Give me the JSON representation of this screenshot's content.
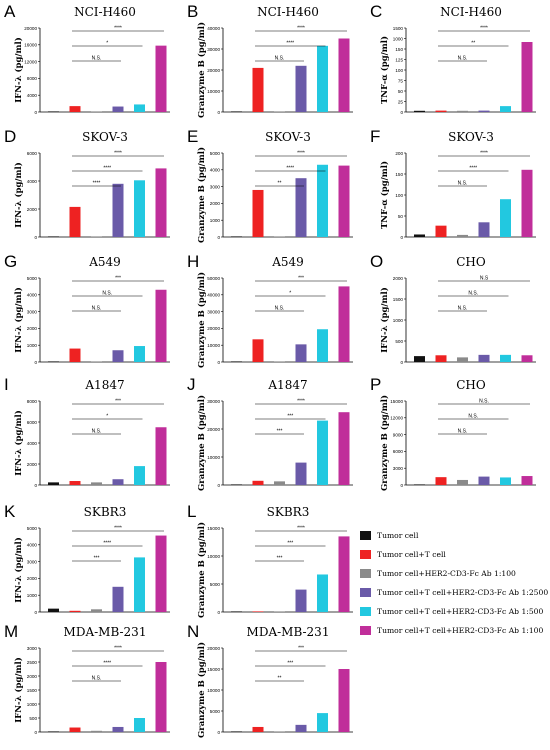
{
  "colors": [
    "#111111",
    "#ee2222",
    "#8a8a8a",
    "#6a5aa8",
    "#22c8e0",
    "#c02e9a"
  ],
  "legend": [
    "Tumor cell",
    "Tumor cell+T cell",
    "Tumor cell+HER2-CD3-Fc Ab 1:100",
    "Tumor cell+T cell+HER2-CD3-Fc Ab 1:2500",
    "Tumor cell+T cell+HER2-CD3-Fc Ab 1:500",
    "Tumor cell+T cell+HER2-CD3-Fc Ab 1:100"
  ],
  "chart_data": [
    {
      "id": "A",
      "type": "bar",
      "title": "NCI-H460",
      "ylabel": "IFN-λ (pg/ml)",
      "ylim": [
        0,
        20000
      ],
      "yticks": [
        "0",
        "4000",
        "8000",
        "12000",
        "16000",
        "20000"
      ],
      "values": [
        0,
        1400,
        0,
        1300,
        1800,
        15800
      ],
      "brackets": [
        {
          "from": 1,
          "to": 5,
          "label": "****"
        },
        {
          "from": 1,
          "to": 4,
          "label": "*"
        },
        {
          "from": 1,
          "to": 3,
          "label": "N.S."
        }
      ]
    },
    {
      "id": "B",
      "type": "bar",
      "title": "NCI-H460",
      "ylabel": "Granzyme B (pg/ml)",
      "ylim": [
        0,
        40000
      ],
      "yticks": [
        "0",
        "10000",
        "20000",
        "30000",
        "40000"
      ],
      "values": [
        0,
        21000,
        0,
        22000,
        31500,
        35000
      ],
      "brackets": [
        {
          "from": 1,
          "to": 5,
          "label": "****"
        },
        {
          "from": 1,
          "to": 4,
          "label": "****"
        },
        {
          "from": 1,
          "to": 3,
          "label": "N.S."
        }
      ]
    },
    {
      "id": "C",
      "type": "bar",
      "title": "NCI-H460",
      "ylabel": "TNF-α (pg/ml)",
      "ylim": [
        0,
        1500
      ],
      "yticks": [
        "0",
        "25",
        "50",
        "75",
        "100",
        "125",
        "150",
        "1000",
        "1500"
      ],
      "values": [
        3,
        25,
        2,
        25,
        105,
        1250
      ],
      "brackets": [
        {
          "from": 1,
          "to": 5,
          "label": "****"
        },
        {
          "from": 1,
          "to": 4,
          "label": "**"
        },
        {
          "from": 1,
          "to": 3,
          "label": "N.S."
        }
      ]
    },
    {
      "id": "D",
      "type": "bar",
      "title": "SKOV-3",
      "ylabel": "IFN-λ (pg/ml)",
      "ylim": [
        0,
        6000
      ],
      "yticks": [
        "0",
        "2000",
        "4000",
        "6000"
      ],
      "values": [
        0,
        2150,
        0,
        3800,
        4050,
        4900
      ],
      "brackets": [
        {
          "from": 1,
          "to": 5,
          "label": "****"
        },
        {
          "from": 1,
          "to": 4,
          "label": "****"
        },
        {
          "from": 1,
          "to": 3,
          "label": "****"
        }
      ]
    },
    {
      "id": "E",
      "type": "bar",
      "title": "SKOV-3",
      "ylabel": "Granzyme B (pg/ml)",
      "ylim": [
        0,
        5000
      ],
      "yticks": [
        "0",
        "1000",
        "2000",
        "3000",
        "4000",
        "5000"
      ],
      "values": [
        0,
        2800,
        0,
        3500,
        4300,
        4250
      ],
      "brackets": [
        {
          "from": 1,
          "to": 5,
          "label": "****"
        },
        {
          "from": 1,
          "to": 4,
          "label": "****"
        },
        {
          "from": 1,
          "to": 3,
          "label": "**"
        }
      ]
    },
    {
      "id": "F",
      "type": "bar",
      "title": "SKOV-3",
      "ylabel": "TNF-α (pg/ml)",
      "ylim": [
        0,
        200
      ],
      "yticks": [
        "0",
        "50",
        "100",
        "150",
        "200"
      ],
      "values": [
        6,
        27,
        5,
        35,
        90,
        160
      ],
      "brackets": [
        {
          "from": 1,
          "to": 5,
          "label": "****"
        },
        {
          "from": 1,
          "to": 4,
          "label": "****"
        },
        {
          "from": 1,
          "to": 3,
          "label": "N.S."
        }
      ]
    },
    {
      "id": "G",
      "type": "bar",
      "title": "A549",
      "ylabel": "IFN-λ (pg/ml)",
      "ylim": [
        0,
        5000
      ],
      "yticks": [
        "0",
        "1000",
        "2000",
        "3000",
        "4000",
        "5000"
      ],
      "values": [
        0,
        800,
        0,
        700,
        950,
        4300
      ],
      "brackets": [
        {
          "from": 1,
          "to": 5,
          "label": "***"
        },
        {
          "from": 1,
          "to": 4,
          "label": "N.S."
        },
        {
          "from": 1,
          "to": 3,
          "label": "N.S."
        }
      ]
    },
    {
      "id": "H",
      "type": "bar",
      "title": "A549",
      "ylabel": "Granzyme B (pg/ml)",
      "ylim": [
        0,
        50000
      ],
      "yticks": [
        "0",
        "10000",
        "20000",
        "30000",
        "40000",
        "50000"
      ],
      "values": [
        0,
        13500,
        0,
        10500,
        19500,
        45000
      ],
      "brackets": [
        {
          "from": 1,
          "to": 5,
          "label": "***"
        },
        {
          "from": 1,
          "to": 4,
          "label": "*"
        },
        {
          "from": 1,
          "to": 3,
          "label": "N.S."
        }
      ]
    },
    {
      "id": "O",
      "type": "bar",
      "title": "CHO",
      "ylabel": "IFN-λ (pg/ml)",
      "ylim": [
        0,
        2000
      ],
      "yticks": [
        "0",
        "500",
        "1000",
        "1500",
        "2000"
      ],
      "values": [
        140,
        160,
        110,
        170,
        170,
        160
      ],
      "brackets": [
        {
          "from": 1,
          "to": 5,
          "label": "N.S"
        },
        {
          "from": 1,
          "to": 4,
          "label": "N.S."
        },
        {
          "from": 1,
          "to": 3,
          "label": "N.S."
        }
      ]
    },
    {
      "id": "I",
      "type": "bar",
      "title": "A1847",
      "ylabel": "IFN-λ (pg/ml)",
      "ylim": [
        0,
        8000
      ],
      "yticks": [
        "0",
        "2000",
        "4000",
        "6000",
        "8000"
      ],
      "values": [
        250,
        380,
        250,
        550,
        1800,
        5500
      ],
      "brackets": [
        {
          "from": 1,
          "to": 5,
          "label": "***"
        },
        {
          "from": 1,
          "to": 4,
          "label": "*"
        },
        {
          "from": 1,
          "to": 3,
          "label": "N.S."
        }
      ]
    },
    {
      "id": "J",
      "type": "bar",
      "title": "A1847",
      "ylabel": "Granzyme B (pg/ml)",
      "ylim": [
        0,
        30000
      ],
      "yticks": [
        "0",
        "10000",
        "20000",
        "30000"
      ],
      "values": [
        0,
        1500,
        1300,
        8000,
        23000,
        26000
      ],
      "brackets": [
        {
          "from": 1,
          "to": 5,
          "label": "****"
        },
        {
          "from": 1,
          "to": 4,
          "label": "***"
        },
        {
          "from": 1,
          "to": 3,
          "label": "***"
        }
      ]
    },
    {
      "id": "P",
      "type": "bar",
      "title": "CHO",
      "ylabel": "Granzyme B (pg/ml)",
      "ylim": [
        0,
        15000
      ],
      "yticks": [
        "0",
        "3000",
        "6000",
        "9000",
        "12000",
        "15000"
      ],
      "values": [
        0,
        1400,
        900,
        1500,
        1350,
        1600
      ],
      "brackets": [
        {
          "from": 1,
          "to": 5,
          "label": "N.S."
        },
        {
          "from": 1,
          "to": 4,
          "label": "N.S."
        },
        {
          "from": 1,
          "to": 3,
          "label": "N.S."
        }
      ]
    },
    {
      "id": "K",
      "type": "bar",
      "title": "SKBR3",
      "ylabel": "IFN-λ (pg/ml)",
      "ylim": [
        0,
        5000
      ],
      "yticks": [
        "0",
        "1000",
        "2000",
        "3000",
        "4000",
        "5000"
      ],
      "values": [
        200,
        40,
        160,
        1500,
        3250,
        4550
      ],
      "brackets": [
        {
          "from": 1,
          "to": 5,
          "label": "****"
        },
        {
          "from": 1,
          "to": 4,
          "label": "****"
        },
        {
          "from": 1,
          "to": 3,
          "label": "***"
        }
      ]
    },
    {
      "id": "L",
      "type": "bar",
      "title": "SKBR3",
      "ylabel": "Granzyme B (pg/ml)",
      "ylim": [
        0,
        15000
      ],
      "yticks": [
        "0",
        "5000",
        "10000",
        "15000"
      ],
      "values": [
        0,
        0,
        0,
        4000,
        6700,
        13500
      ],
      "brackets": [
        {
          "from": 1,
          "to": 5,
          "label": "****"
        },
        {
          "from": 1,
          "to": 4,
          "label": "***"
        },
        {
          "from": 1,
          "to": 3,
          "label": "***"
        }
      ]
    },
    {
      "id": "M",
      "type": "bar",
      "title": "MDA-MB-231",
      "ylabel": "IFN-λ (pg/ml)",
      "ylim": [
        0,
        3000
      ],
      "yticks": [
        "0",
        "500",
        "1000",
        "1500",
        "2000",
        "2500",
        "3000"
      ],
      "values": [
        0,
        160,
        40,
        180,
        500,
        2500
      ],
      "brackets": [
        {
          "from": 1,
          "to": 5,
          "label": "****"
        },
        {
          "from": 1,
          "to": 4,
          "label": "****"
        },
        {
          "from": 1,
          "to": 3,
          "label": "N.S."
        }
      ]
    },
    {
      "id": "N",
      "type": "bar",
      "title": "MDA-MB-231",
      "ylabel": "Granzyme B (pg/ml)",
      "ylim": [
        0,
        20000
      ],
      "yticks": [
        "0",
        "5000",
        "10000",
        "15000",
        "20000"
      ],
      "values": [
        0,
        1200,
        0,
        1700,
        4500,
        15000
      ],
      "brackets": [
        {
          "from": 1,
          "to": 5,
          "label": "***"
        },
        {
          "from": 1,
          "to": 4,
          "label": "***"
        },
        {
          "from": 1,
          "to": 3,
          "label": "**"
        }
      ]
    }
  ]
}
